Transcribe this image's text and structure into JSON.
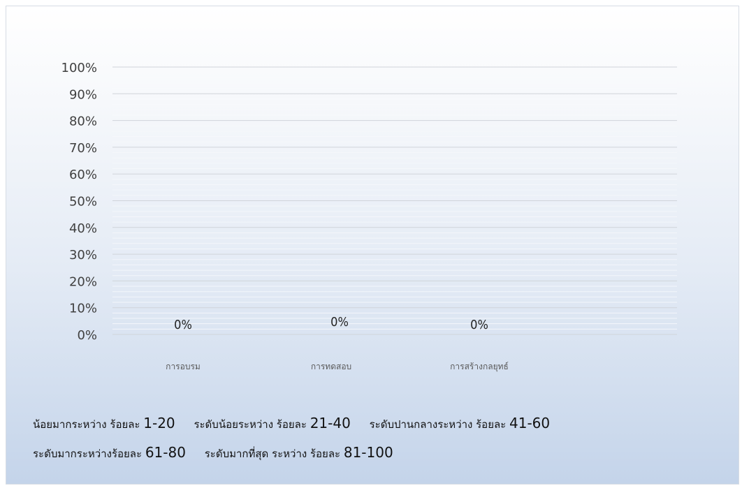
{
  "chart_data": {
    "type": "bar",
    "categories": [
      "การอบรม",
      "การทดสอบ",
      "การสร้างกลยุทธ์"
    ],
    "values": [
      0,
      0,
      0
    ],
    "data_labels": [
      "0%",
      "0%",
      "0%"
    ],
    "y_ticks": [
      "0%",
      "10%",
      "20%",
      "30%",
      "40%",
      "50%",
      "60%",
      "70%",
      "80%",
      "90%",
      "100%"
    ],
    "ylim": [
      0,
      100
    ],
    "title": "",
    "xlabel": "",
    "ylabel": "",
    "grid": true
  },
  "legend_rows": [
    [
      {
        "text": "น้อยมากระหว่าง ร้อยละ ",
        "range": "1-20"
      },
      {
        "text": "ระดับน้อยระหว่าง ร้อยละ ",
        "range": "21-40"
      },
      {
        "text": "ระดับปานกลางระหว่าง ร้อยละ ",
        "range": "41-60"
      }
    ],
    [
      {
        "text": "ระดับมากระหว่างร้อยละ ",
        "range": "61-80"
      },
      {
        "text": "ระดับมากที่สุด ระหว่าง ร้อยละ ",
        "range": "81-100"
      }
    ]
  ]
}
